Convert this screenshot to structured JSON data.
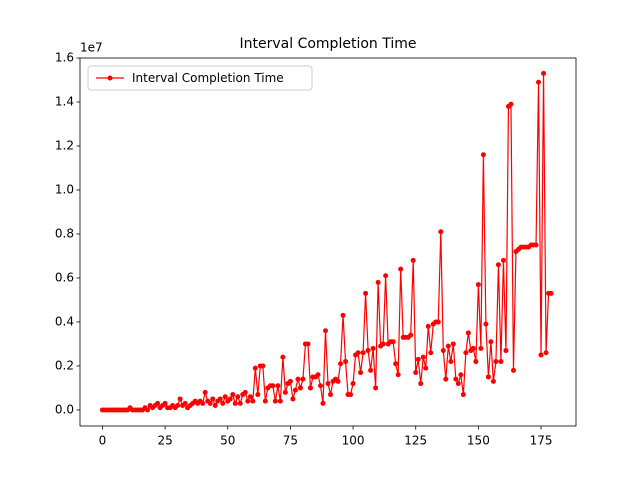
{
  "chart_data": {
    "type": "line",
    "title": "Interval Completion Time",
    "y_offset_label": "1e7",
    "legend": "upper left",
    "grid": false,
    "xlim": [
      -8.95,
      188.95
    ],
    "ylim": [
      -0.073,
      1.6
    ],
    "xticks": [
      0,
      25,
      50,
      75,
      100,
      125,
      150,
      175
    ],
    "yticks": [
      {
        "value": 0,
        "label": "0.0"
      },
      {
        "value": 0.2,
        "label": "0.2"
      },
      {
        "value": 0.4,
        "label": "0.4"
      },
      {
        "value": 0.6,
        "label": "0.6"
      },
      {
        "value": 0.8,
        "label": "0.8"
      },
      {
        "value": 1.0,
        "label": "1.0"
      },
      {
        "value": 1.2,
        "label": "1.2"
      },
      {
        "value": 1.4,
        "label": "1.4"
      },
      {
        "value": 1.6,
        "label": "1.6"
      }
    ],
    "x": [
      0,
      1,
      2,
      3,
      4,
      5,
      6,
      7,
      8,
      9,
      10,
      11,
      12,
      13,
      14,
      15,
      16,
      17,
      18,
      19,
      20,
      21,
      22,
      23,
      24,
      25,
      26,
      27,
      28,
      29,
      30,
      31,
      32,
      33,
      34,
      35,
      36,
      37,
      38,
      39,
      40,
      41,
      42,
      43,
      44,
      45,
      46,
      47,
      48,
      49,
      50,
      51,
      52,
      53,
      54,
      55,
      56,
      57,
      58,
      59,
      60,
      61,
      62,
      63,
      64,
      65,
      66,
      67,
      68,
      69,
      70,
      71,
      72,
      73,
      74,
      75,
      76,
      77,
      78,
      79,
      80,
      81,
      82,
      83,
      84,
      85,
      86,
      87,
      88,
      89,
      90,
      91,
      92,
      93,
      94,
      95,
      96,
      97,
      98,
      99,
      100,
      101,
      102,
      103,
      104,
      105,
      106,
      107,
      108,
      109,
      110,
      111,
      112,
      113,
      114,
      115,
      116,
      117,
      118,
      119,
      120,
      121,
      122,
      123,
      124,
      125,
      126,
      127,
      128,
      129,
      130,
      131,
      132,
      133,
      134,
      135,
      136,
      137,
      138,
      139,
      140,
      141,
      142,
      143,
      144,
      145,
      146,
      147,
      148,
      149,
      150,
      151,
      152,
      153,
      154,
      155,
      156,
      157,
      158,
      159,
      160,
      161,
      162,
      163,
      164,
      165,
      166,
      167,
      168,
      169,
      170,
      171,
      172,
      173,
      174,
      175,
      176,
      177,
      178,
      179
    ],
    "series": [
      {
        "name": "Interval Completion Time",
        "color": "#ff0000",
        "values": [
          0,
          0,
          0,
          0,
          0,
          0,
          0,
          0,
          0,
          0,
          0,
          0.01,
          0,
          0,
          0,
          0,
          0,
          0.01,
          0,
          0.02,
          0.01,
          0.02,
          0.03,
          0.01,
          0.02,
          0.03,
          0.01,
          0.01,
          0.02,
          0.01,
          0.02,
          0.05,
          0.02,
          0.03,
          0.01,
          0.02,
          0.03,
          0.04,
          0.03,
          0.04,
          0.03,
          0.08,
          0.04,
          0.03,
          0.05,
          0.02,
          0.04,
          0.05,
          0.03,
          0.06,
          0.04,
          0.05,
          0.07,
          0.03,
          0.06,
          0.03,
          0.07,
          0.08,
          0.04,
          0.06,
          0.04,
          0.19,
          0.07,
          0.2,
          0.2,
          0.04,
          0.1,
          0.11,
          0.11,
          0.04,
          0.11,
          0.04,
          0.24,
          0.08,
          0.12,
          0.13,
          0.05,
          0.09,
          0.14,
          0.1,
          0.14,
          0.3,
          0.3,
          0.1,
          0.15,
          0.15,
          0.16,
          0.11,
          0.03,
          0.36,
          0.12,
          0.07,
          0.13,
          0.14,
          0.13,
          0.21,
          0.43,
          0.22,
          0.07,
          0.07,
          0.12,
          0.25,
          0.26,
          0.17,
          0.26,
          0.53,
          0.27,
          0.18,
          0.28,
          0.1,
          0.58,
          0.29,
          0.3,
          0.61,
          0.3,
          0.31,
          0.31,
          0.21,
          0.16,
          0.64,
          0.33,
          0.33,
          0.33,
          0.34,
          0.68,
          0.17,
          0.23,
          0.12,
          0.24,
          0.19,
          0.38,
          0.26,
          0.39,
          0.4,
          0.4,
          0.81,
          0.27,
          0.14,
          0.29,
          0.22,
          0.3,
          0.14,
          0.12,
          0.16,
          0.07,
          0.26,
          0.35,
          0.27,
          0.28,
          0.22,
          0.57,
          0.28,
          1.16,
          0.39,
          0.15,
          0.31,
          0.13,
          0.22,
          0.66,
          0.22,
          0.68,
          0.27,
          1.38,
          1.39,
          0.18,
          0.72,
          0.73,
          0.74,
          0.74,
          0.74,
          0.74,
          0.75,
          0.75,
          0.75,
          1.49,
          0.25,
          1.53,
          0.26,
          0.53,
          0.53
        ]
      }
    ]
  }
}
